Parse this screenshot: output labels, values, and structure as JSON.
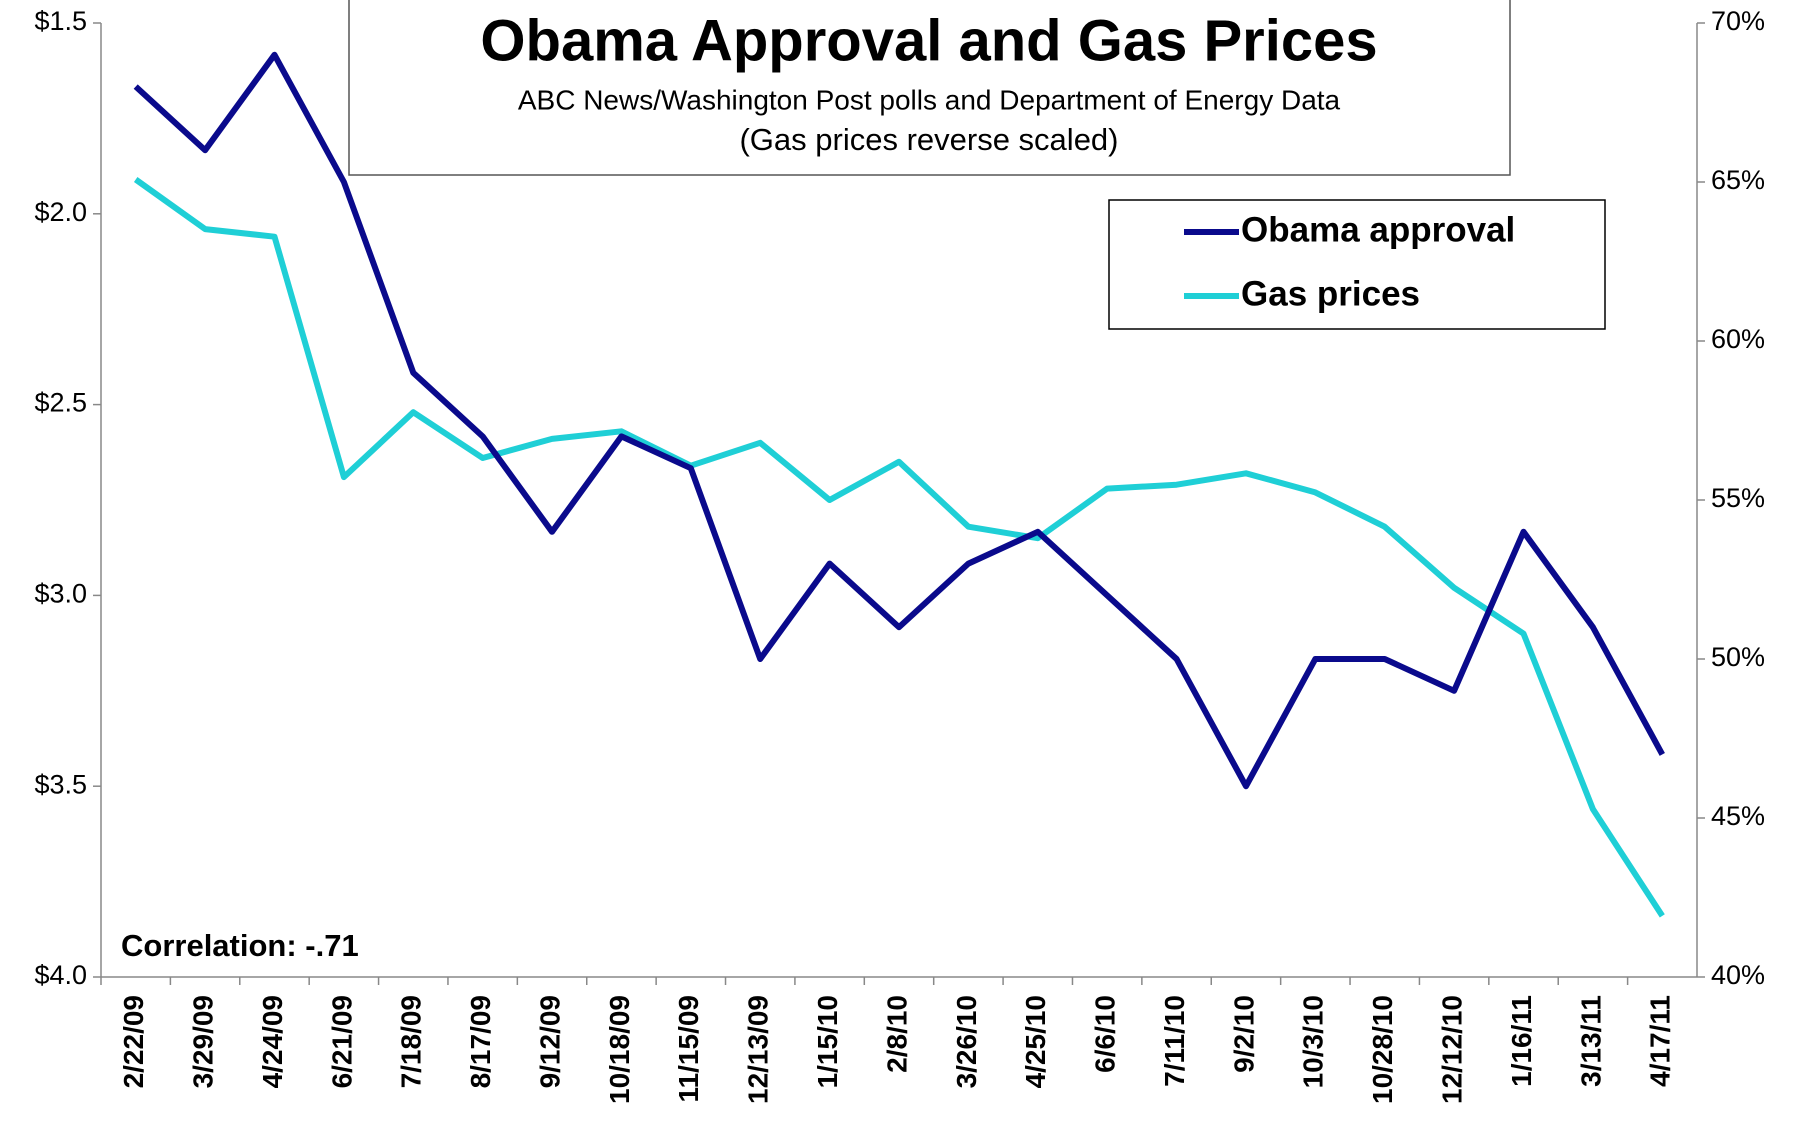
{
  "chart_data": {
    "type": "line",
    "title": "Obama Approval and Gas Prices",
    "subtitle": [
      "ABC News/Washington Post polls and Department of Energy Data",
      "(Gas prices reverse scaled)"
    ],
    "annotation": "Correlation: -.71",
    "categories": [
      "2/22/09",
      "3/29/09",
      "4/24/09",
      "6/21/09",
      "7/18/09",
      "8/17/09",
      "9/12/09",
      "10/18/09",
      "11/15/09",
      "12/13/09",
      "1/15/10",
      "2/8/10",
      "3/26/10",
      "4/25/10",
      "6/6/10",
      "7/11/10",
      "9/2/10",
      "10/3/10",
      "10/28/10",
      "12/12/10",
      "1/16/11",
      "3/13/11",
      "4/17/11"
    ],
    "series": [
      {
        "name": "Obama approval",
        "color": "#0a0a8c",
        "axis": "y2",
        "values": [
          68,
          66,
          69,
          65,
          59,
          57,
          54,
          57,
          56,
          50,
          53,
          51,
          53,
          54,
          52,
          50,
          46,
          50,
          50,
          49,
          54,
          51,
          47
        ]
      },
      {
        "name": "Gas prices",
        "color": "#1fcfd6",
        "axis": "y",
        "values": [
          1.91,
          2.04,
          2.06,
          2.69,
          2.52,
          2.64,
          2.59,
          2.57,
          2.66,
          2.6,
          2.75,
          2.65,
          2.82,
          2.85,
          2.72,
          2.71,
          2.68,
          2.73,
          2.82,
          2.98,
          3.1,
          3.56,
          3.84
        ]
      }
    ],
    "ylim": [
      4.0,
      1.5
    ],
    "yticks": [
      {
        "value": 1.5,
        "label": "$1.5"
      },
      {
        "value": 2.0,
        "label": "$2.0"
      },
      {
        "value": 2.5,
        "label": "$2.5"
      },
      {
        "value": 3.0,
        "label": "$3.0"
      },
      {
        "value": 3.5,
        "label": "$3.5"
      },
      {
        "value": 4.0,
        "label": "$4.0"
      }
    ],
    "y2lim": [
      40,
      70
    ],
    "y2ticks": [
      {
        "value": 40,
        "label": "40%"
      },
      {
        "value": 45,
        "label": "45%"
      },
      {
        "value": 50,
        "label": "50%"
      },
      {
        "value": 55,
        "label": "55%"
      },
      {
        "value": 60,
        "label": "60%"
      },
      {
        "value": 65,
        "label": "65%"
      },
      {
        "value": 70,
        "label": "70%"
      }
    ],
    "grid": false,
    "legend": "upper right"
  }
}
